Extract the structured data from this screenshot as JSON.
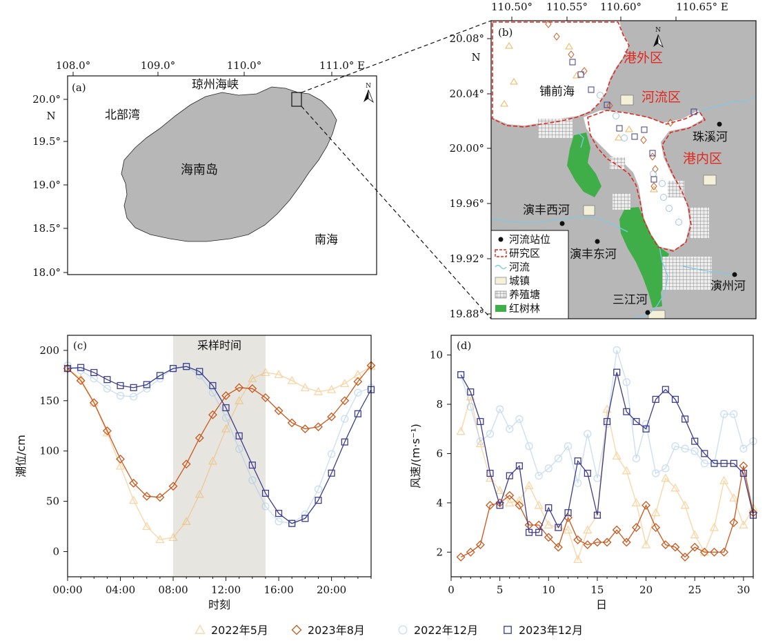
{
  "legend": {
    "series": [
      {
        "label": "2022年5月",
        "color": "#F2B35A",
        "marker": "triangle"
      },
      {
        "label": "2023年8月",
        "color": "#C8561A",
        "marker": "diamond"
      },
      {
        "label": "2022年12月",
        "color": "#9DC3E8",
        "marker": "circle"
      },
      {
        "label": "2023年12月",
        "color": "#3B3B8C",
        "marker": "square"
      }
    ]
  },
  "panel_a": {
    "tag": "(a)",
    "lon_ticks": [
      "108.0°",
      "109.0°",
      "110.0°",
      "111.0° E"
    ],
    "lat_ticks": [
      "20.0°",
      "19.5°",
      "19.0°",
      "18.5°",
      "18.0°"
    ],
    "lat_suffix": "N",
    "north_label": "N",
    "labels": {
      "strait": "琼州海峡",
      "gulf": "北部湾",
      "island": "海南岛",
      "sea": "南海"
    }
  },
  "panel_b": {
    "tag": "(b)",
    "lon_ticks": [
      "110.50°",
      "110.55°",
      "110.60°",
      "110.65° E"
    ],
    "lat_ticks": [
      "20.08°",
      "20.04°",
      "20.00°",
      "19.96°",
      "19.92°",
      "19.88°"
    ],
    "lat_suffix": "N",
    "north_label": "N",
    "zones": {
      "outer": "港外区",
      "river": "河流区",
      "inner": "港内区"
    },
    "place_labels": {
      "bay": "铺前海",
      "zhuxi": "珠溪河",
      "yanfeng_west": "演丰西河",
      "yanfeng_east": "演丰东河",
      "sanjiang": "三江河",
      "yanzhou": "演州河"
    },
    "map_legend": [
      "河流站位",
      "研究区",
      "河流",
      "城镇",
      "养殖塘",
      "红树林"
    ],
    "colors": {
      "land": "#B7B7B7",
      "mangrove": "#3FAE49",
      "town": "#F5F0D8",
      "river": "#7EC8E3",
      "boundary": "#E0281E"
    }
  },
  "chart_data": [
    {
      "panel": "(c)",
      "type": "line",
      "xlabel": "时刻",
      "ylabel": "潮位/cm",
      "x_tick_labels": [
        "00:00",
        "04:00",
        "08:00",
        "12:00",
        "16:00",
        "20:00"
      ],
      "y_ticks": [
        0,
        50,
        100,
        150,
        200
      ],
      "xlim": [
        0,
        23
      ],
      "ylim": [
        -25,
        215
      ],
      "shaded_region": {
        "label": "采样时间",
        "x": [
          8,
          15
        ]
      },
      "x": [
        0,
        1,
        2,
        3,
        4,
        5,
        6,
        7,
        8,
        9,
        10,
        11,
        12,
        13,
        14,
        15,
        16,
        17,
        18,
        19,
        20,
        21,
        22,
        23
      ],
      "series": [
        {
          "name": "2022年5月",
          "values": [
            182,
            172,
            148,
            118,
            85,
            51,
            25,
            12,
            14,
            30,
            57,
            90,
            122,
            150,
            172,
            178,
            176,
            170,
            163,
            159,
            161,
            167,
            176,
            184
          ]
        },
        {
          "name": "2023年8月",
          "values": [
            182,
            170,
            148,
            120,
            92,
            68,
            55,
            54,
            65,
            87,
            113,
            136,
            155,
            163,
            162,
            153,
            140,
            128,
            122,
            124,
            134,
            150,
            169,
            185
          ]
        },
        {
          "name": "2022年12月",
          "values": [
            185,
            180,
            172,
            162,
            155,
            154,
            162,
            172,
            182,
            184,
            175,
            158,
            133,
            102,
            71,
            45,
            30,
            28,
            37,
            62,
            97,
            132,
            158,
            163
          ]
        },
        {
          "name": "2023年12月",
          "values": [
            182,
            183,
            178,
            171,
            165,
            163,
            166,
            175,
            182,
            184,
            179,
            165,
            143,
            115,
            86,
            58,
            38,
            28,
            33,
            51,
            78,
            109,
            137,
            161
          ]
        }
      ]
    },
    {
      "panel": "(d)",
      "type": "line",
      "xlabel": "日",
      "ylabel": "风速/(m·s⁻¹)",
      "x_ticks": [
        0,
        5,
        10,
        15,
        20,
        25,
        30
      ],
      "y_ticks": [
        2,
        4,
        6,
        8,
        10
      ],
      "xlim": [
        0,
        31
      ],
      "ylim": [
        1,
        10.8
      ],
      "x": [
        1,
        2,
        3,
        4,
        5,
        6,
        7,
        8,
        9,
        10,
        11,
        12,
        13,
        14,
        15,
        16,
        17,
        18,
        19,
        20,
        21,
        22,
        23,
        24,
        25,
        26,
        27,
        28,
        29,
        30,
        31
      ],
      "series": [
        {
          "name": "2022年5月",
          "values": [
            6.9,
            8.3,
            6.4,
            5.0,
            4.5,
            4.0,
            4.1,
            4.7,
            3.9,
            3.1,
            3.0,
            2.9,
            1.7,
            2.9,
            3.5,
            7.8,
            5.9,
            5.3,
            4.0,
            2.3,
            3.6,
            5.0,
            4.6,
            3.9,
            2.7,
            2.0,
            3.0,
            4.9,
            4.2,
            3.1,
            3.8
          ]
        },
        {
          "name": "2023年8月",
          "values": [
            1.8,
            2.0,
            2.3,
            3.9,
            4.0,
            4.3,
            3.9,
            3.1,
            3.1,
            2.6,
            2.2,
            3.4,
            2.5,
            2.3,
            2.4,
            2.4,
            2.9,
            2.4,
            3.0,
            3.9,
            3.0,
            2.3,
            2.2,
            1.8,
            2.2,
            2.0,
            2.0,
            2.0,
            3.2,
            5.5,
            3.6
          ]
        },
        {
          "name": "2022年12月",
          "values": [
            9.2,
            7.9,
            6.5,
            6.8,
            7.8,
            7.0,
            7.4,
            6.3,
            5.1,
            5.4,
            5.8,
            6.3,
            4.8,
            6.8,
            5.0,
            7.2,
            10.2,
            8.9,
            5.8,
            7.2,
            5.2,
            5.4,
            6.3,
            6.2,
            6.1,
            5.6,
            5.6,
            7.6,
            7.6,
            6.2,
            6.5
          ]
        },
        {
          "name": "2023年12月",
          "values": [
            9.2,
            8.5,
            7.3,
            5.2,
            3.9,
            5.1,
            5.5,
            2.8,
            2.8,
            3.8,
            3.0,
            3.6,
            5.7,
            5.2,
            3.5,
            7.3,
            9.3,
            7.7,
            7.3,
            7.0,
            8.2,
            8.6,
            8.2,
            7.4,
            6.5,
            6.0,
            5.6,
            5.6,
            5.6,
            5.2,
            3.5
          ]
        }
      ]
    }
  ]
}
